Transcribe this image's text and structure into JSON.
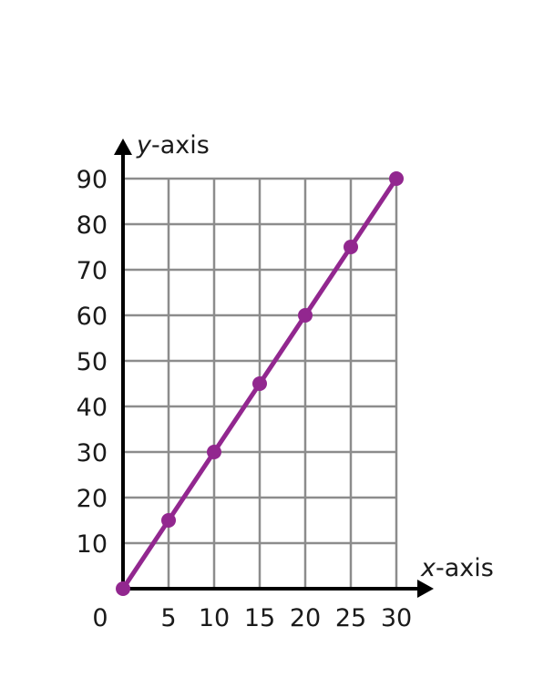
{
  "chart_data": {
    "type": "line",
    "xlabel_var": "x",
    "xlabel_rest": "-axis",
    "ylabel_var": "y",
    "ylabel_rest": "-axis",
    "origin_label": "0",
    "xlim": [
      0,
      30
    ],
    "ylim": [
      0,
      90
    ],
    "x_ticks": [
      5,
      10,
      15,
      20,
      25,
      30
    ],
    "y_ticks": [
      10,
      20,
      30,
      40,
      50,
      60,
      70,
      80,
      90
    ],
    "grid": true,
    "series": [
      {
        "x": [
          0,
          5,
          10,
          15,
          20,
          25,
          30
        ],
        "y": [
          0,
          15,
          30,
          45,
          60,
          75,
          90
        ]
      }
    ]
  },
  "colors": {
    "line": "#92278f",
    "grid": "#8c8c8c",
    "axis": "#000000"
  }
}
